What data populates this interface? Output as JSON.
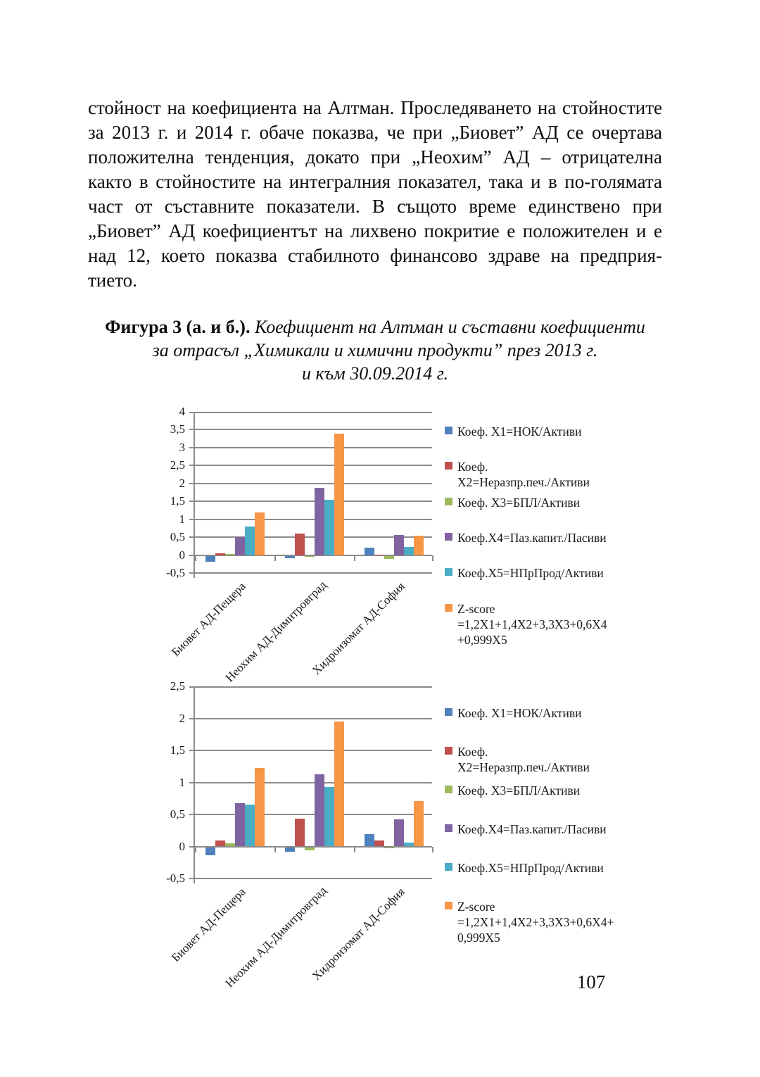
{
  "page": {
    "paragraph_lines": [
      "стойност на коефициента на Алтман. Проследяването на стойностите",
      "за 2013 г. и 2014 г. обаче показва, че при „Биовет” АД се очертава",
      "положителна тенденция, докато при „Неохим” АД – отрицателна",
      "както в стойностите на интегралния показател, така и в по-голямата",
      "част от съставните показатели. В същото време единствено при",
      "„Биовет” АД коефициентът на лихвено покритие е положителен и е",
      "над 12, което показва стабилното финансово здраве на предприя-",
      "тието."
    ],
    "caption": {
      "label_bold": "Фигура 3 (а. и б.).",
      "title_italic": "Коефициент на Алтман и съставни коефициенти",
      "line2_italic": "за отрасъл „Химикали и химични продукти” през 2013 г.",
      "line3_italic": "и към 30.09.2014 г."
    },
    "page_number": "107"
  },
  "chart_data": [
    {
      "type": "bar",
      "title": "",
      "categories": [
        "Биовет АД-Пещера",
        "Неохим АД-Димитровград",
        "Хидроизомат АД-София"
      ],
      "series": [
        {
          "name": "Коеф. X1=НОК/Активи",
          "color": "#4F81BD",
          "values": [
            -0.17,
            -0.07,
            0.2
          ]
        },
        {
          "name": "Коеф.\nX2=Неразпр.печ./Активи",
          "color": "#C0504D",
          "values": [
            0.05,
            0.6,
            0.01
          ]
        },
        {
          "name": "Коеф. X3=БПЛ/Активи",
          "color": "#9BBB59",
          "values": [
            0.03,
            -0.02,
            -0.08
          ]
        },
        {
          "name": "Коеф.X4=Паз.капит./Пасиви",
          "color": "#8064A2",
          "values": [
            0.5,
            1.87,
            0.57
          ]
        },
        {
          "name": "Коеф.X5=НПрПрод/Активи",
          "color": "#4BACC6",
          "values": [
            0.8,
            1.54,
            0.22
          ]
        },
        {
          "name": "Z-score\n=1,2X1+1,4X2+3,3X3+0,6X4\n+0,999X5",
          "color": "#F79646",
          "values": [
            1.19,
            3.39,
            0.55
          ]
        }
      ],
      "ylim": [
        -0.5,
        4
      ],
      "y_ticks": [
        "4",
        "3,5",
        "3",
        "2,5",
        "2",
        "1,5",
        "1",
        "0,5",
        "0",
        "-0,5"
      ],
      "grid": true,
      "legend_position": "right",
      "xlabel": "",
      "ylabel": ""
    },
    {
      "type": "bar",
      "title": "",
      "categories": [
        "Биовет АД-Пещера",
        "Неохим АД-Димитровград",
        "Хидроизомат АД-София"
      ],
      "series": [
        {
          "name": "Коеф. X1=НОК/Активи",
          "color": "#4F81BD",
          "values": [
            -0.13,
            -0.07,
            0.19
          ]
        },
        {
          "name": "Коеф.\nX2=Неразпр.печ./Активи",
          "color": "#C0504D",
          "values": [
            0.09,
            0.43,
            0.09
          ]
        },
        {
          "name": "Коеф. X3=БПЛ/Активи",
          "color": "#9BBB59",
          "values": [
            0.05,
            -0.05,
            -0.01
          ]
        },
        {
          "name": "Коеф.X4=Паз.капит./Пасиви",
          "color": "#8064A2",
          "values": [
            0.68,
            1.13,
            0.42
          ]
        },
        {
          "name": "Коеф.X5=НПрПрод/Активи",
          "color": "#4BACC6",
          "values": [
            0.65,
            0.93,
            0.06
          ]
        },
        {
          "name": "Z-score\n=1,2X1+1,4X2+3,3X3+0,6X4+\n0,999X5",
          "color": "#F79646",
          "values": [
            1.23,
            1.95,
            0.71
          ]
        }
      ],
      "ylim": [
        -0.5,
        2.5
      ],
      "y_ticks": [
        "2,5",
        "2",
        "1,5",
        "1",
        "0,5",
        "0",
        "-0,5"
      ],
      "grid": true,
      "legend_position": "right",
      "xlabel": "",
      "ylabel": ""
    }
  ]
}
